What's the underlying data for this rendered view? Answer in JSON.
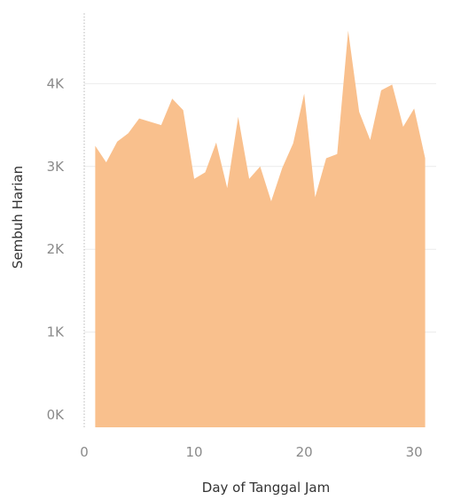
{
  "chart_data": {
    "type": "area",
    "xlabel": "Day of Tanggal Jam",
    "ylabel": "Sembuh Harian",
    "xlim": [
      0,
      32
    ],
    "ylim": [
      -150,
      4850
    ],
    "x_ticks": [
      0,
      10,
      20,
      30
    ],
    "y_ticks": [
      0,
      1000,
      2000,
      3000,
      4000
    ],
    "y_tick_labels": [
      "0K",
      "1K",
      "2K",
      "3K",
      "4K"
    ],
    "grid": "horizontal",
    "colors": {
      "fill": "#f9c08d",
      "grid": "#ececec",
      "zero_line": "#b8b8b8"
    },
    "series": [
      {
        "x": [
          1,
          2,
          3,
          4,
          5,
          6,
          7,
          8,
          9,
          10,
          11,
          12,
          13,
          14,
          15,
          16,
          17,
          18,
          19,
          20,
          21,
          22,
          23,
          24,
          25,
          26,
          27,
          28,
          29,
          30,
          31
        ],
        "values": [
          3250,
          3050,
          3300,
          3400,
          3580,
          3540,
          3500,
          3820,
          3680,
          2850,
          2930,
          3290,
          2740,
          3600,
          2850,
          3000,
          2580,
          2980,
          3280,
          3880,
          2630,
          3100,
          3150,
          4640,
          3660,
          3320,
          3920,
          3990,
          3480,
          3700,
          3100
        ]
      }
    ]
  }
}
